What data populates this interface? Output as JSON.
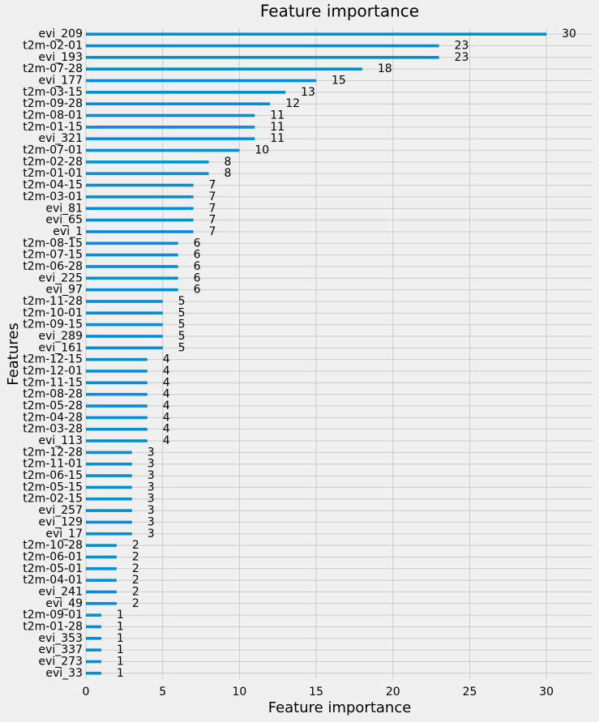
{
  "chart_data": {
    "type": "barh",
    "title": "Feature importance",
    "x_label": "Feature importance",
    "y_label": "Features",
    "categories": [
      "evi_209",
      "t2m-02-01",
      "evi_193",
      "t2m-07-28",
      "evi_177",
      "t2m-03-15",
      "t2m-09-28",
      "t2m-08-01",
      "t2m-01-15",
      "evi_321",
      "t2m-07-01",
      "t2m-02-28",
      "t2m-01-01",
      "t2m-04-15",
      "t2m-03-01",
      "evi_81",
      "evi_65",
      "evi_1",
      "t2m-08-15",
      "t2m-07-15",
      "t2m-06-28",
      "evi_225",
      "evi_97",
      "t2m-11-28",
      "t2m-10-01",
      "t2m-09-15",
      "evi_289",
      "evi_161",
      "t2m-12-15",
      "t2m-12-01",
      "t2m-11-15",
      "t2m-08-28",
      "t2m-05-28",
      "t2m-04-28",
      "t2m-03-28",
      "evi_113",
      "t2m-12-28",
      "t2m-11-01",
      "t2m-06-15",
      "t2m-05-15",
      "t2m-02-15",
      "evi_257",
      "evi_129",
      "evi_17",
      "t2m-10-28",
      "t2m-06-01",
      "t2m-05-01",
      "t2m-04-01",
      "evi_241",
      "evi_49",
      "t2m-09-01",
      "t2m-01-28",
      "evi_353",
      "evi_337",
      "evi_273",
      "evi_33"
    ],
    "values": [
      30,
      23,
      23,
      18,
      15,
      13,
      12,
      11,
      11,
      11,
      10,
      8,
      8,
      7,
      7,
      7,
      7,
      7,
      6,
      6,
      6,
      6,
      6,
      5,
      5,
      5,
      5,
      5,
      4,
      4,
      4,
      4,
      4,
      4,
      4,
      4,
      3,
      3,
      3,
      3,
      3,
      3,
      3,
      3,
      2,
      2,
      2,
      2,
      2,
      2,
      1,
      1,
      1,
      1,
      1,
      1
    ],
    "color": "#008fd5",
    "xlim": [
      0,
      33
    ],
    "xticks": [
      0,
      5,
      10,
      15,
      20,
      25,
      30
    ],
    "grid": true
  }
}
